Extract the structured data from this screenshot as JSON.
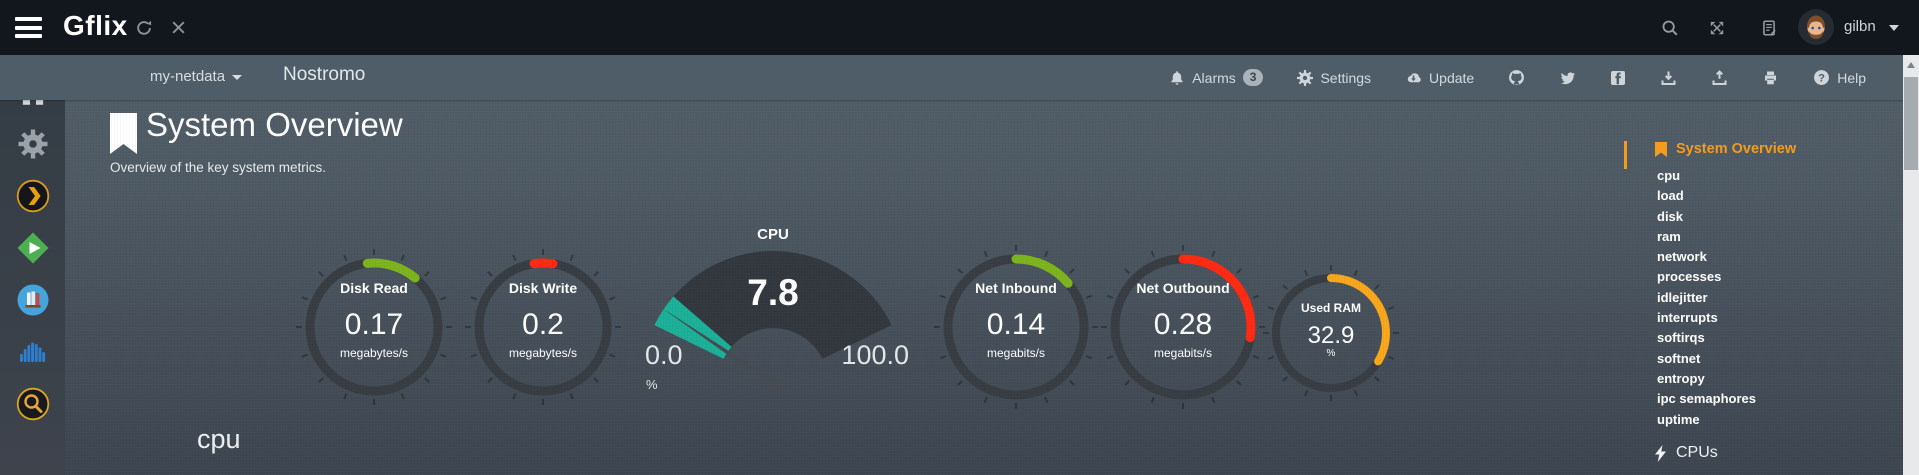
{
  "topbar": {
    "brand": "Gflix",
    "user": "gilbn"
  },
  "navbar": {
    "host_dropdown": "my-netdata",
    "hostname": "Nostromo",
    "alarms": "Alarms",
    "alarms_count": "3",
    "settings": "Settings",
    "update": "Update",
    "help": "Help"
  },
  "heading": {
    "title": "System Overview",
    "subtitle": "Overview of the key system metrics."
  },
  "section_heading": "cpu",
  "toc": {
    "active": "System Overview",
    "items": [
      "cpu",
      "load",
      "disk",
      "ram",
      "network",
      "processes",
      "idlejitter",
      "interrupts",
      "softirqs",
      "softnet",
      "entropy",
      "ipc semaphores",
      "uptime"
    ],
    "cpus_section": "CPUs"
  },
  "chart_data": [
    {
      "type": "gauge",
      "title": "Disk Read",
      "value": 0.17,
      "display": "0.17",
      "units": "megabytes/s",
      "color": "#7db41d",
      "arc_start_deg": -6,
      "arc_sweep_deg": 46
    },
    {
      "type": "gauge",
      "title": "Disk Write",
      "value": 0.2,
      "display": "0.2",
      "units": "megabytes/s",
      "color": "#ff2a12",
      "arc_start_deg": -8,
      "arc_sweep_deg": 17
    },
    {
      "type": "gauge",
      "title": "CPU",
      "value": 7.8,
      "display": "7.8",
      "units": "%",
      "min": 0,
      "max": 100,
      "min_label": "0.0",
      "max_label": "100.0",
      "color": "#1cb098"
    },
    {
      "type": "gauge",
      "title": "Net Inbound",
      "value": 0.14,
      "display": "0.14",
      "units": "megabits/s",
      "color": "#7db41d",
      "arc_start_deg": 0,
      "arc_sweep_deg": 50
    },
    {
      "type": "gauge",
      "title": "Net Outbound",
      "value": 0.28,
      "display": "0.28",
      "units": "megabits/s",
      "color": "#ff2a12",
      "arc_start_deg": 0,
      "arc_sweep_deg": 99
    },
    {
      "type": "gauge",
      "title": "Used RAM",
      "value": 32.9,
      "display": "32.9",
      "units": "%",
      "color": "#f9a71b",
      "arc_start_deg": 0,
      "arc_sweep_deg": 121
    }
  ],
  "colors": {
    "accent_orange": "#f59b1e",
    "topbar_bg": "#12171d",
    "navbar_bg": "#4e5d67",
    "gauge_track": "#383d43"
  },
  "icons": {
    "topbar": [
      "hamburger",
      "refresh",
      "close",
      "search",
      "expand",
      "changelog-book",
      "avatar",
      "caret-down"
    ],
    "navbar": [
      "bell",
      "gear",
      "cloud-download",
      "github",
      "twitter",
      "facebook",
      "import",
      "export",
      "print",
      "question-circle"
    ],
    "left_sidebar": [
      "home",
      "gear",
      "plex",
      "green-play-diamond",
      "library-books",
      "blue-cloud-bars",
      "search-lantern"
    ],
    "toc": [
      "bookmark",
      "lightning-bolt"
    ]
  }
}
